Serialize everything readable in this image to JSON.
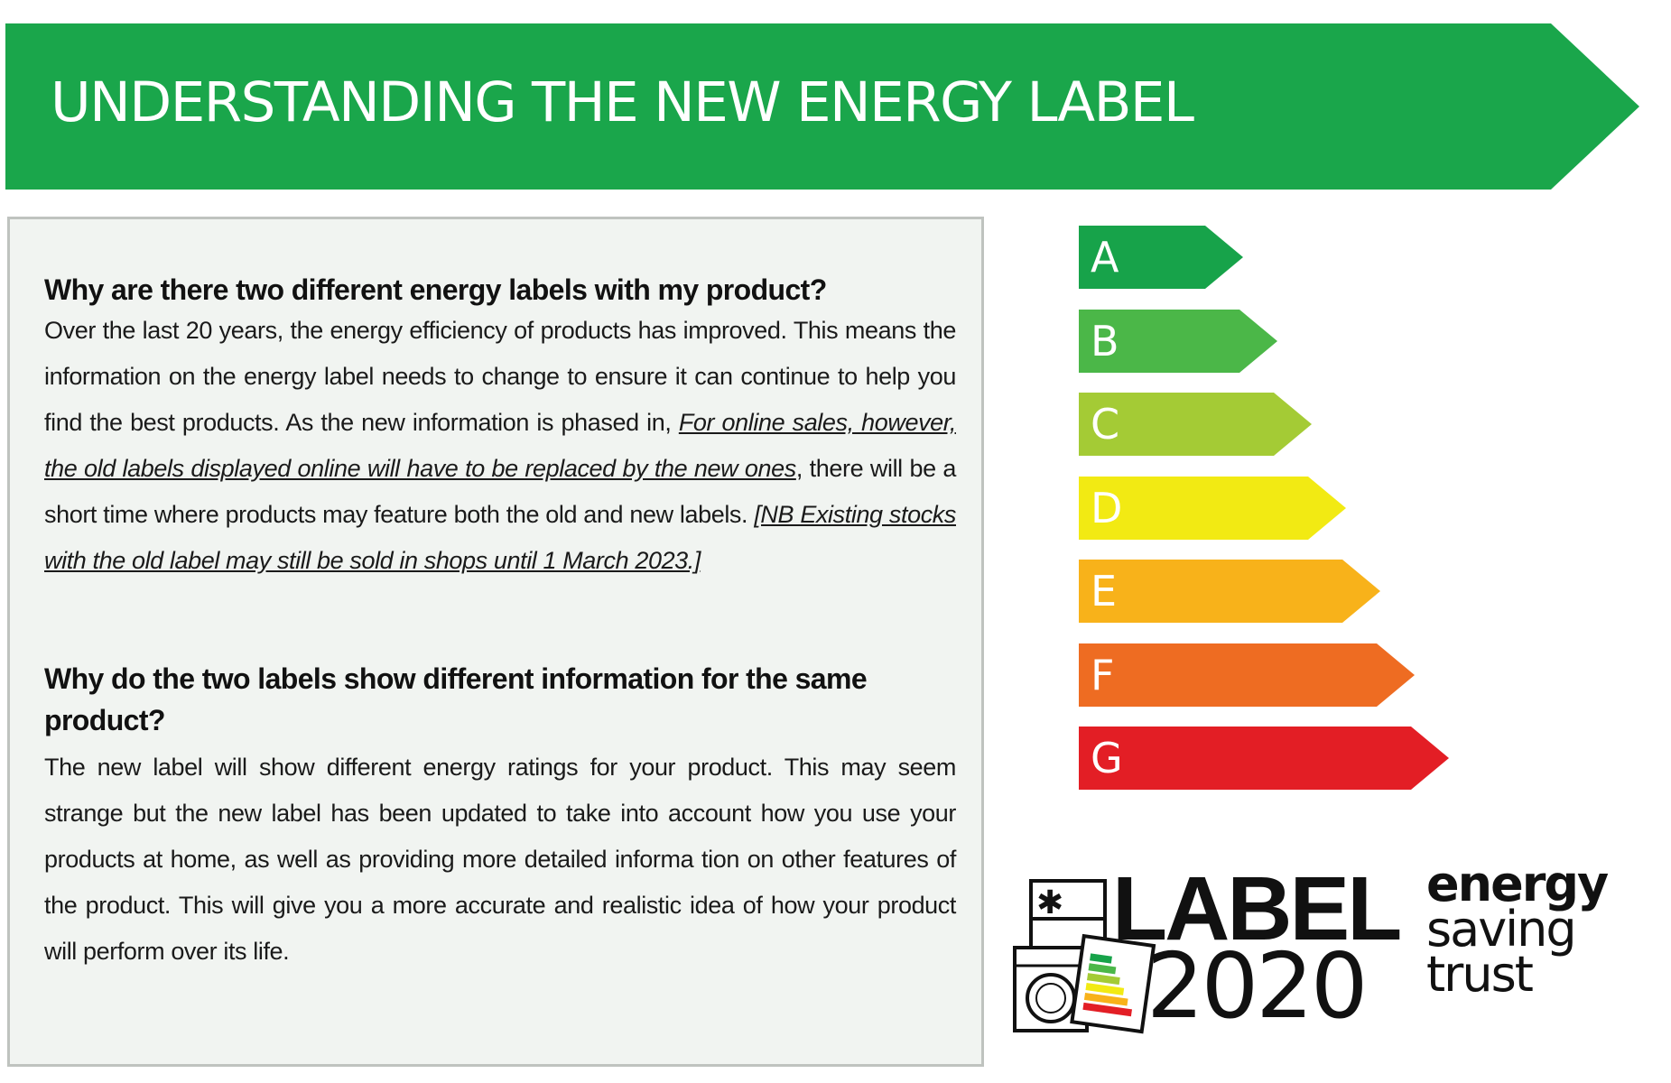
{
  "header": {
    "title": "UNDERSTANDING THE NEW ENERGY LABEL",
    "color": "#1aa64b"
  },
  "faq": {
    "question1": "Why are there two different energy labels with my product?",
    "answer1_part1": "Over the last 20 years, the energy efficiency of products has improved. This means the information on the energy label needs to change to ensure it can continue to help you find the best products. As the new information is phased in, ",
    "answer1_link1": "For online sales, however, the old labels displayed online will have to be replaced by the new ones",
    "answer1_part2": ", there will be a short time where products may feature both the old and new labels. ",
    "answer1_link2": "[NB Existing stocks with the old label may still be sold in shops until 1 March 2023.]",
    "question2": "Why do the two labels show different information for the same product?",
    "answer2": "The new label will show different energy ratings for your product. This may seem strange but the new label has been updated to take into account how you use your products at home, as well as providing more detailed informa tion on other features of the product. This will give you a more accurate and realistic idea of how your product will perform over its life."
  },
  "rating_scale": [
    {
      "label": "A",
      "color": "#17a34a"
    },
    {
      "label": "B",
      "color": "#4bb748"
    },
    {
      "label": "C",
      "color": "#a4cb35"
    },
    {
      "label": "D",
      "color": "#f2ea13"
    },
    {
      "label": "E",
      "color": "#f8b21a"
    },
    {
      "label": "F",
      "color": "#ee6c22"
    },
    {
      "label": "G",
      "color": "#e31e25"
    }
  ],
  "logos": {
    "label2020_word1": "LABEL",
    "label2020_word2": "2020",
    "est_line1": "energy",
    "est_line2": "saving",
    "est_line3": "trust"
  }
}
